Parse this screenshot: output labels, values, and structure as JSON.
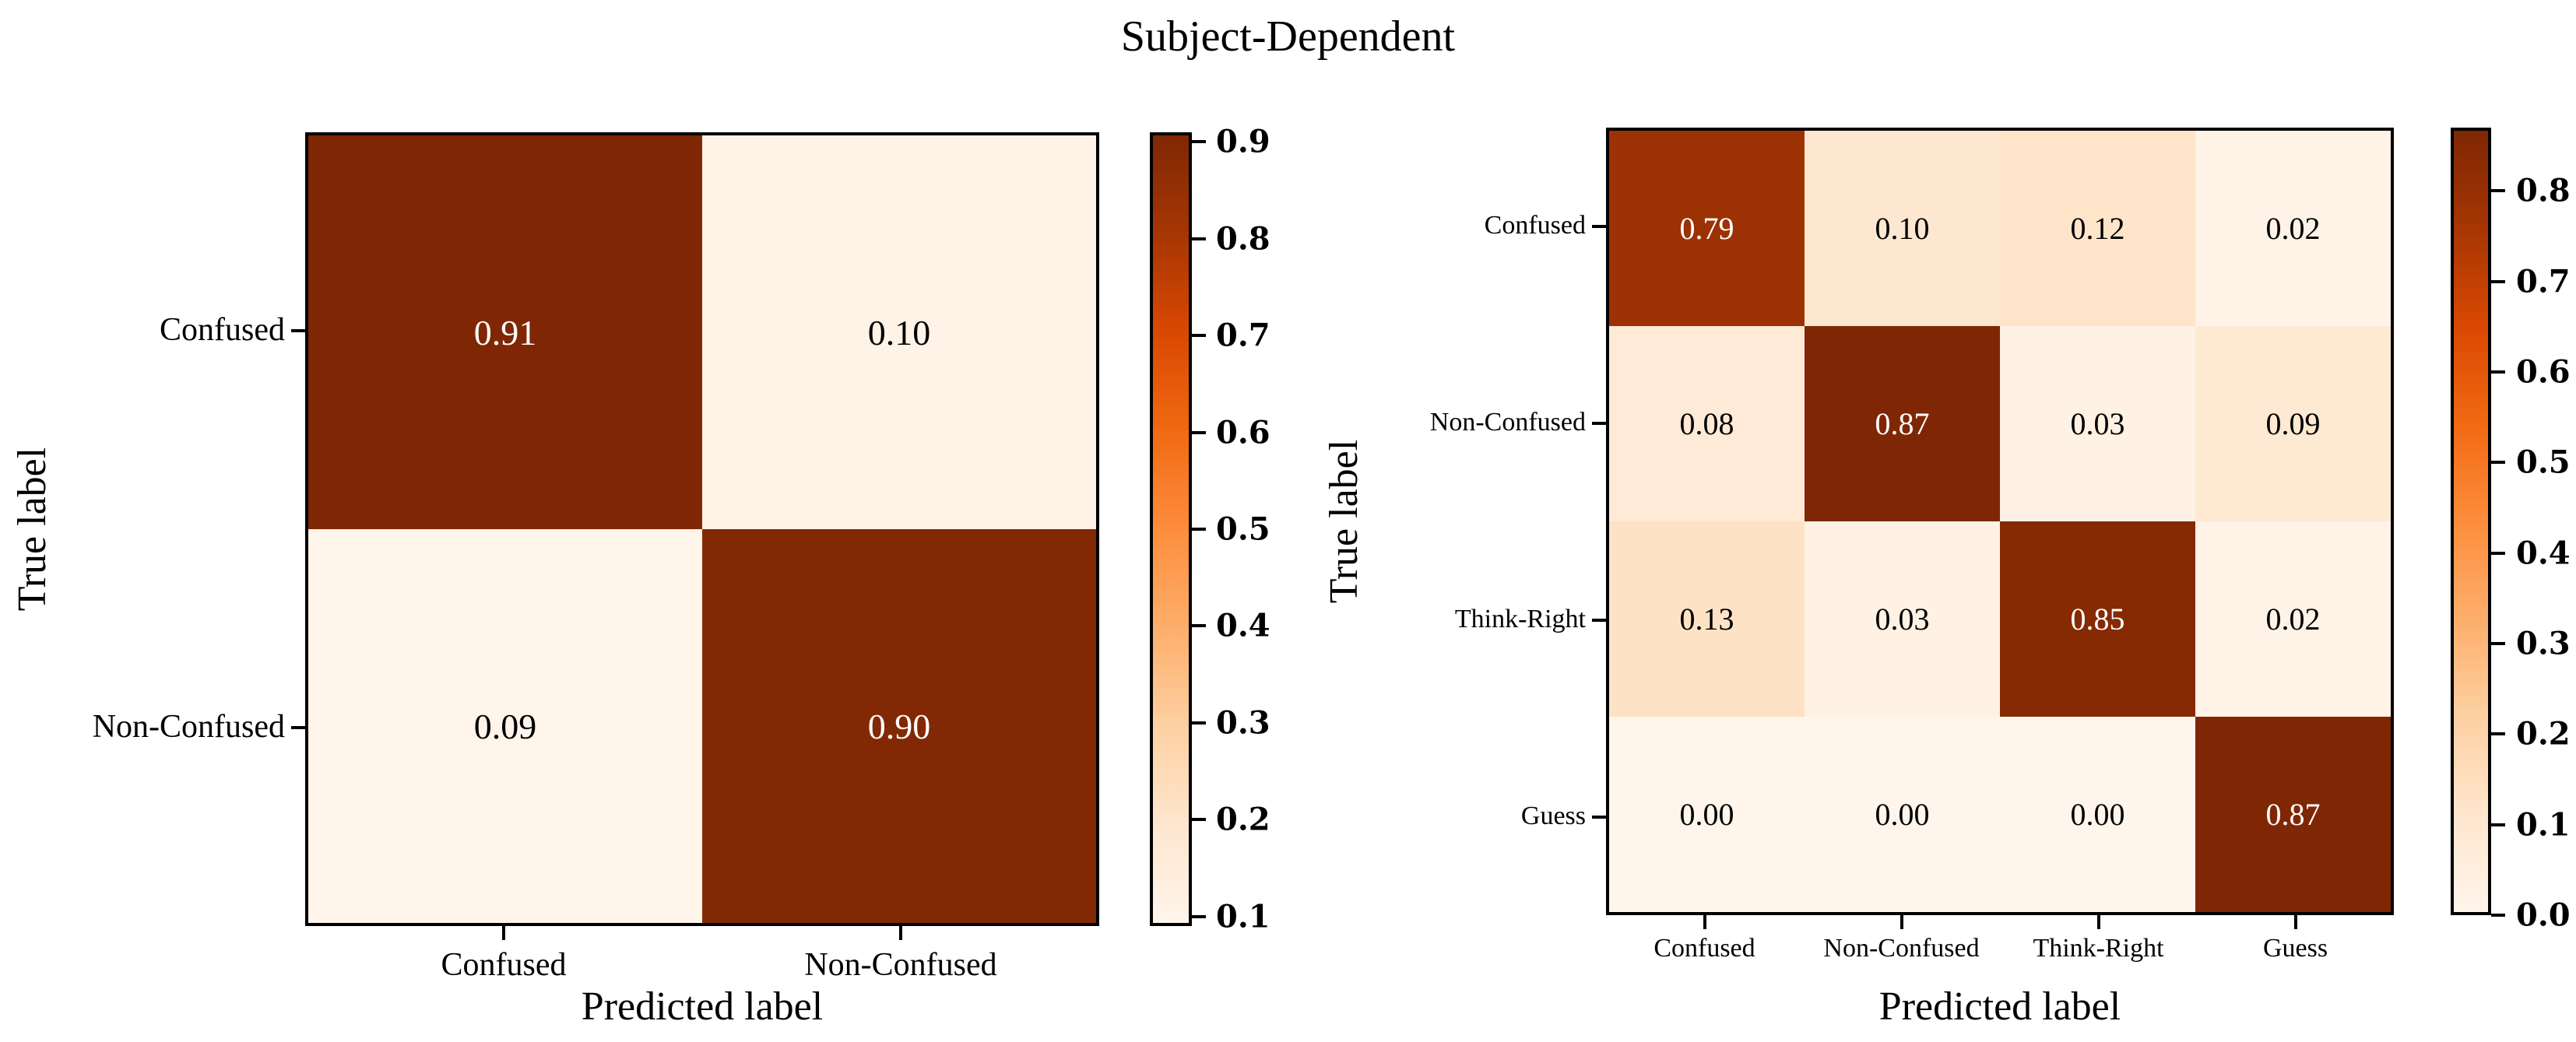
{
  "title": "Subject-Dependent",
  "colors": {
    "background": "#ffffff",
    "text": "#000000",
    "axis": "#000000",
    "oranges_gradient": [
      "#fff5eb",
      "#fee6ce",
      "#fdd0a2",
      "#fdae6b",
      "#fd8d3c",
      "#f16913",
      "#d94801",
      "#a63603",
      "#7f2704"
    ],
    "cell_text_dark_bg": "#ffffff",
    "cell_text_light_bg": "#000000"
  },
  "chart_data": [
    {
      "type": "heatmap",
      "name": "binary-confusion-matrix",
      "xlabel": "Predicted label",
      "ylabel": "True label",
      "x_categories": [
        "Confused",
        "Non-Confused"
      ],
      "y_categories": [
        "Confused",
        "Non-Confused"
      ],
      "matrix": [
        [
          0.91,
          0.1
        ],
        [
          0.09,
          0.9
        ]
      ],
      "cell_labels": [
        [
          "0.91",
          "0.10"
        ],
        [
          "0.09",
          "0.90"
        ]
      ],
      "cell_colors": [
        [
          "#7f2704",
          "#fff3e8"
        ],
        [
          "#fff5eb",
          "#832804"
        ]
      ],
      "cell_text_colors": [
        [
          "#ffffff",
          "#000000"
        ],
        [
          "#000000",
          "#ffffff"
        ]
      ],
      "colorbar": {
        "vmin": 0.09,
        "vmax": 0.91,
        "tick_labels": [
          "0.9",
          "0.8",
          "0.7",
          "0.6",
          "0.5",
          "0.4",
          "0.3",
          "0.2",
          "0.1"
        ],
        "tick_values": [
          0.9,
          0.8,
          0.7,
          0.6,
          0.5,
          0.4,
          0.3,
          0.2,
          0.1
        ]
      }
    },
    {
      "type": "heatmap",
      "name": "four-class-confusion-matrix",
      "xlabel": "Predicted label",
      "ylabel": "True label",
      "x_categories": [
        "Confused",
        "Non-Confused",
        "Think-Right",
        "Guess"
      ],
      "y_categories": [
        "Confused",
        "Non-Confused",
        "Think-Right",
        "Guess"
      ],
      "matrix": [
        [
          0.79,
          0.1,
          0.12,
          0.02
        ],
        [
          0.08,
          0.87,
          0.03,
          0.09
        ],
        [
          0.13,
          0.03,
          0.85,
          0.02
        ],
        [
          0.0,
          0.0,
          0.0,
          0.87
        ]
      ],
      "cell_labels": [
        [
          "0.79",
          "0.10",
          "0.12",
          "0.02"
        ],
        [
          "0.08",
          "0.87",
          "0.03",
          "0.09"
        ],
        [
          "0.13",
          "0.03",
          "0.85",
          "0.02"
        ],
        [
          "0.00",
          "0.00",
          "0.00",
          "0.87"
        ]
      ],
      "cell_colors": [
        [
          "#9c3203",
          "#fee7d0",
          "#fee4c9",
          "#fff2e6"
        ],
        [
          "#feead6",
          "#7f2704",
          "#fff1e3",
          "#fee9d3"
        ],
        [
          "#fee2c5",
          "#fff1e3",
          "#862a04",
          "#fff2e6"
        ],
        [
          "#fff5eb",
          "#fff5eb",
          "#fff5eb",
          "#7f2704"
        ]
      ],
      "cell_text_colors": [
        [
          "#ffffff",
          "#000000",
          "#000000",
          "#000000"
        ],
        [
          "#000000",
          "#ffffff",
          "#000000",
          "#000000"
        ],
        [
          "#000000",
          "#000000",
          "#ffffff",
          "#000000"
        ],
        [
          "#000000",
          "#000000",
          "#000000",
          "#ffffff"
        ]
      ],
      "colorbar": {
        "vmin": 0.0,
        "vmax": 0.87,
        "tick_labels": [
          "0.8",
          "0.7",
          "0.6",
          "0.5",
          "0.4",
          "0.3",
          "0.2",
          "0.1",
          "0.0"
        ],
        "tick_values": [
          0.8,
          0.7,
          0.6,
          0.5,
          0.4,
          0.3,
          0.2,
          0.1,
          0.0
        ]
      }
    }
  ]
}
